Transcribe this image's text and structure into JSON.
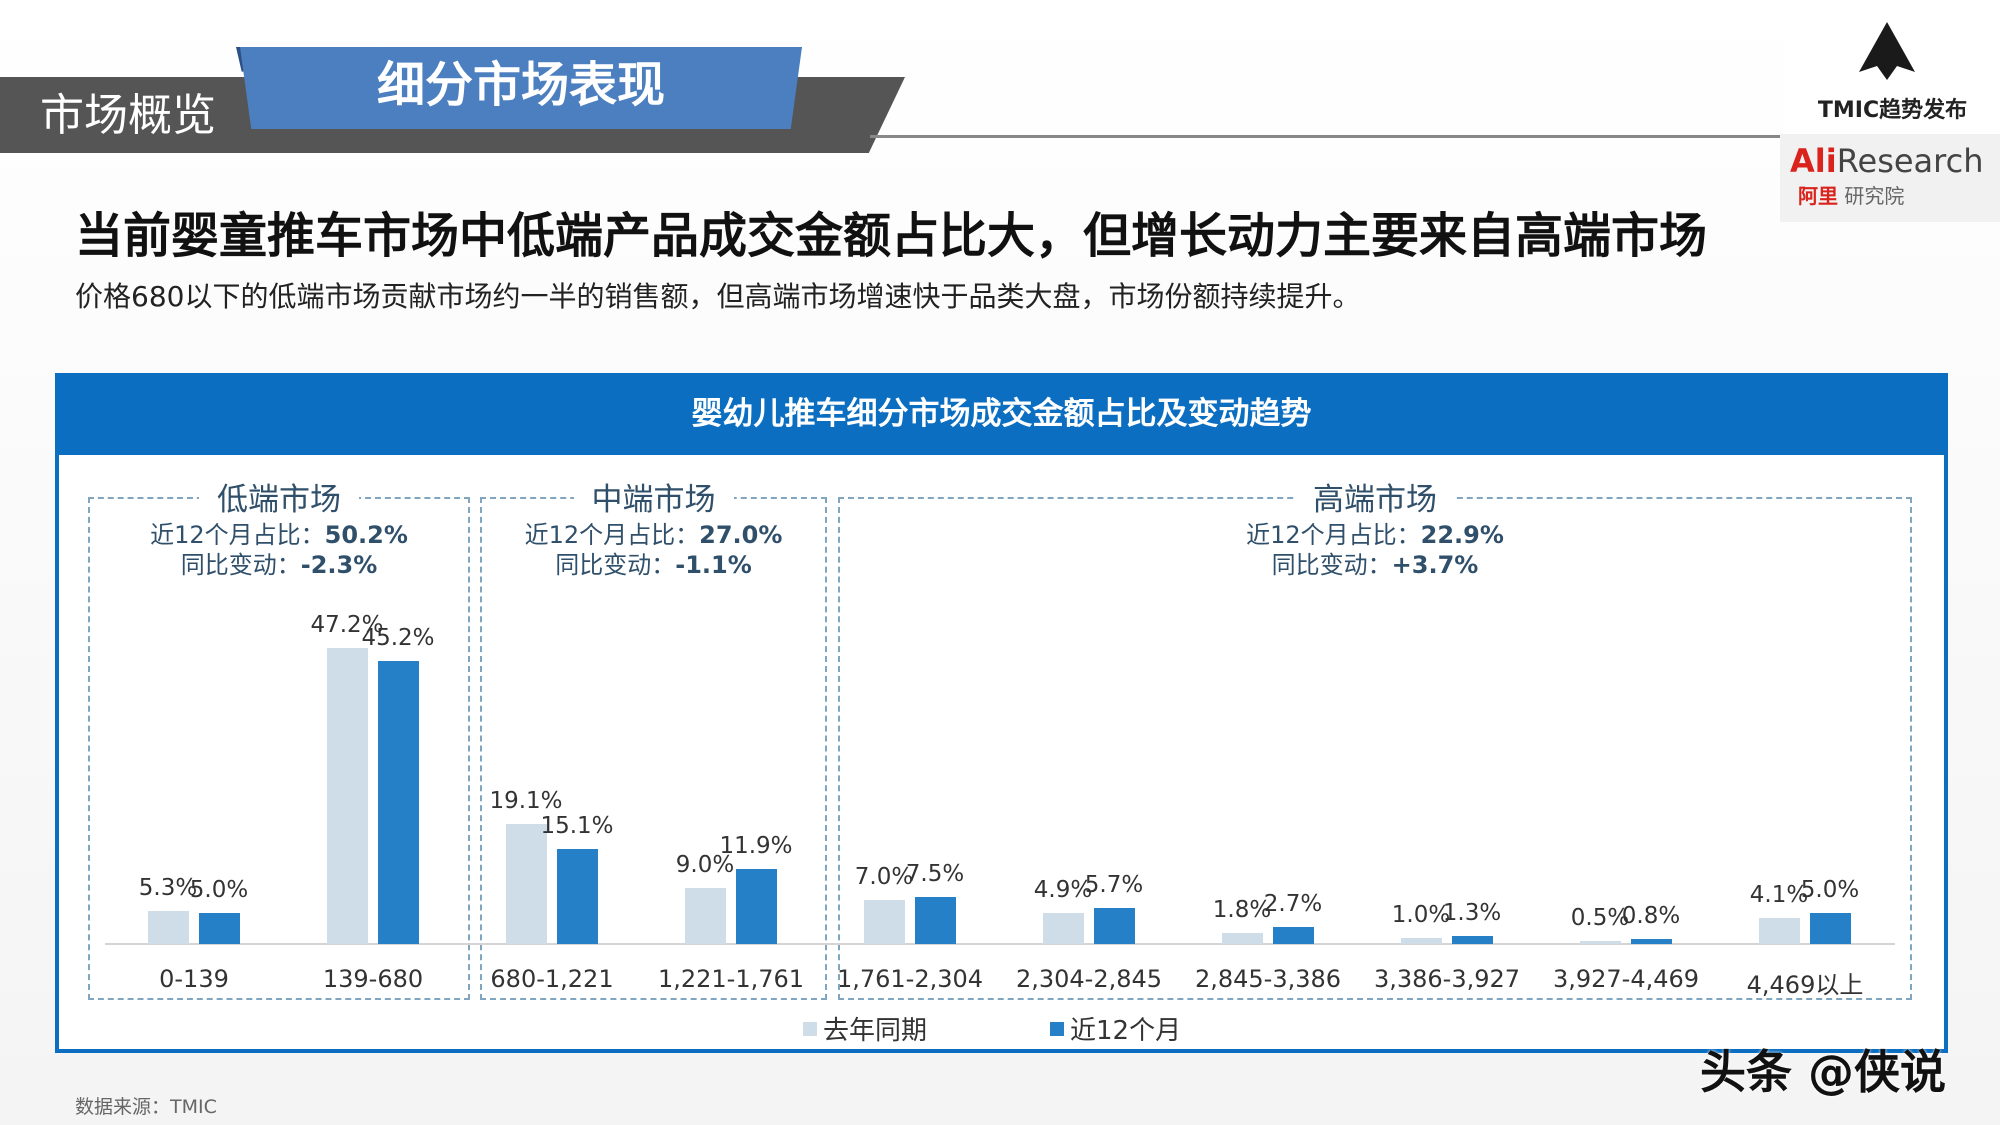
{
  "header": {
    "section": "市场概览",
    "tab": "细分市场表现",
    "logo1": "TMIC趋势发布",
    "logo2_brand": "Ali",
    "logo2_word": "Research",
    "logo2_sub_cn": "阿里",
    "logo2_sub": "研究院"
  },
  "title": "当前婴童推车市场中低端产品成交金额占比大，但增长动力主要来自高端市场",
  "subtitle": "价格680以下的低端市场贡献市场约一半的销售额，但高端市场增速快于品类大盘，市场份额持续提升。",
  "colors": {
    "header": "#0b6ec0",
    "last_year": "#cfdde9",
    "recent": "#2680c8"
  },
  "groups": [
    {
      "title": "低端市场",
      "share_label": "近12个月占比：",
      "share": "50.2%",
      "change_label": "同比变动：",
      "change": "-2.3%"
    },
    {
      "title": "中端市场",
      "share_label": "近12个月占比：",
      "share": "27.0%",
      "change_label": "同比变动：",
      "change": "-1.1%"
    },
    {
      "title": "高端市场",
      "share_label": "近12个月占比：",
      "share": "22.9%",
      "change_label": "同比变动：",
      "change": "+3.7%"
    }
  ],
  "chart_data": {
    "type": "bar",
    "title": "婴幼儿推车细分市场成交金额占比及变动趋势",
    "categories": [
      "0-139",
      "139-680",
      "680-1,221",
      "1,221-1,761",
      "1,761-2,304",
      "2,304-2,845",
      "2,845-3,386",
      "3,386-3,927",
      "3,927-4,469",
      "4,469以上"
    ],
    "series": [
      {
        "name": "去年同期",
        "values": [
          5.3,
          47.2,
          19.1,
          9.0,
          7.0,
          4.9,
          1.8,
          1.0,
          0.5,
          4.1
        ],
        "labels": [
          "5.3%",
          "47.2%",
          "19.1%",
          "9.0%",
          "7.0%",
          "4.9%",
          "1.8%",
          "1.0%",
          "0.5%",
          "4.1%"
        ]
      },
      {
        "name": "近12个月",
        "values": [
          5.0,
          45.2,
          15.1,
          11.9,
          7.5,
          5.7,
          2.7,
          1.3,
          0.8,
          5.0
        ],
        "labels": [
          "5.0%",
          "45.2%",
          "15.1%",
          "11.9%",
          "7.5%",
          "5.7%",
          "2.7%",
          "1.3%",
          "0.8%",
          "5.0%"
        ]
      }
    ],
    "unit": "%",
    "grid": false,
    "legend": "bottom"
  },
  "source": "数据来源：TMIC",
  "watermark": "头条 @侠说"
}
